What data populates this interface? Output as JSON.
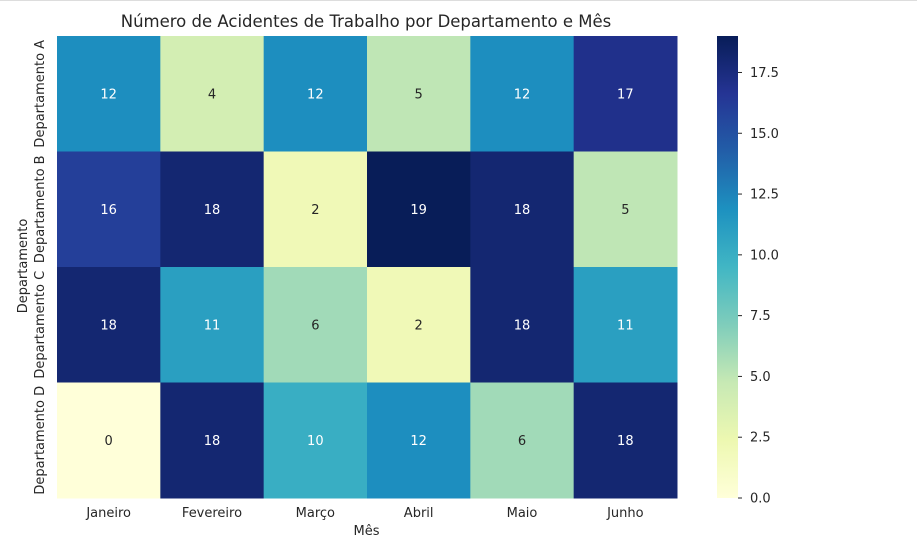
{
  "chart_data": {
    "type": "heatmap",
    "title": "Número de Acidentes de Trabalho por Departamento e Mês",
    "xlabel": "Mês",
    "ylabel": "Departamento",
    "x_categories": [
      "Janeiro",
      "Fevereiro",
      "Março",
      "Abril",
      "Maio",
      "Junho"
    ],
    "y_categories": [
      "Departamento A",
      "Departamento B",
      "Departamento C",
      "Departamento D"
    ],
    "values": [
      [
        12,
        4,
        12,
        5,
        12,
        17
      ],
      [
        16,
        18,
        2,
        19,
        18,
        5
      ],
      [
        18,
        11,
        6,
        2,
        18,
        11
      ],
      [
        0,
        18,
        10,
        12,
        6,
        18
      ]
    ],
    "colormap": "YlGnBu",
    "color_range": [
      0,
      19
    ],
    "colorbar_ticks": [
      "0.0",
      "2.5",
      "5.0",
      "7.5",
      "10.0",
      "12.5",
      "15.0",
      "17.5"
    ],
    "annotated": true
  }
}
